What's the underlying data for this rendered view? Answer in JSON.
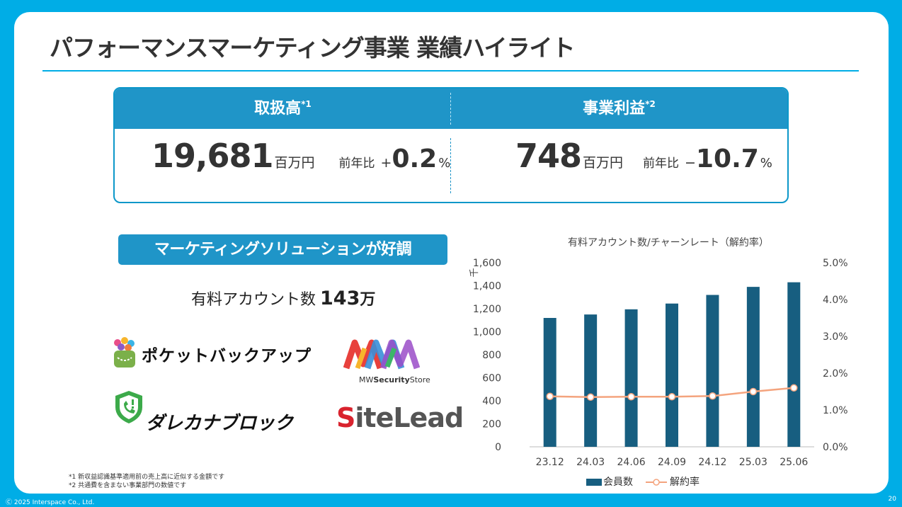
{
  "title": "パフォーマンスマーケティング事業 業績ハイライト",
  "kpis": [
    {
      "header": "取扱高",
      "note": "*1",
      "value": "19,681",
      "unit": "百万円",
      "yoy_label": "前年比",
      "yoy_sign": "+",
      "yoy_value": "0.2",
      "yoy_unit": "%"
    },
    {
      "header": "事業利益",
      "note": "*2",
      "value": "748",
      "unit": "百万円",
      "yoy_label": "前年比",
      "yoy_sign": "−",
      "yoy_value": "10.7",
      "yoy_unit": "%"
    }
  ],
  "banner": "マーケティングソリューションが好調",
  "paid_accounts": {
    "label": "有料アカウント数",
    "value": "143",
    "unit": "万"
  },
  "logos": {
    "pocket": "ポケットバックアップ",
    "mw_prefix": "MW",
    "mw_bold": "Security",
    "mw_suffix": "Store",
    "dare": "ダレカナブロック",
    "sitelead_s": "S",
    "sitelead_rest": "iteLead"
  },
  "notes": [
    "*1 新収益認識基準適用前の売上高に近似する金額です",
    "*2 共通費を含まない事業部門の数値です"
  ],
  "footer": "Ⓒ 2025 Interspace Co., Ltd.",
  "page_number": "20",
  "colors": {
    "accent": "#00ADE6",
    "header": "#1F95C8",
    "bar": "#175E80",
    "line": "#F4A47E"
  },
  "chart_data": {
    "type": "bar",
    "title": "有料アカウント数/チャーンレート（解約率）",
    "y_unit_label": "千",
    "categories": [
      "23.12",
      "24.03",
      "24.06",
      "24.09",
      "24.12",
      "25.03",
      "25.06"
    ],
    "ylim": [
      0,
      1600
    ],
    "yticks": [
      "0",
      "200",
      "400",
      "600",
      "800",
      "1,000",
      "1,200",
      "1,400",
      "1,600"
    ],
    "y2lim": [
      0,
      5.0
    ],
    "y2ticks": [
      "0.0%",
      "1.0%",
      "2.0%",
      "3.0%",
      "4.0%",
      "5.0%"
    ],
    "series": [
      {
        "name": "会員数",
        "type": "bar",
        "axis": "left",
        "values": [
          1120,
          1150,
          1195,
          1245,
          1320,
          1390,
          1430
        ]
      },
      {
        "name": "解約率",
        "type": "line",
        "axis": "right",
        "values": [
          1.37,
          1.35,
          1.36,
          1.36,
          1.38,
          1.5,
          1.6
        ]
      }
    ],
    "legend": "bottom"
  }
}
